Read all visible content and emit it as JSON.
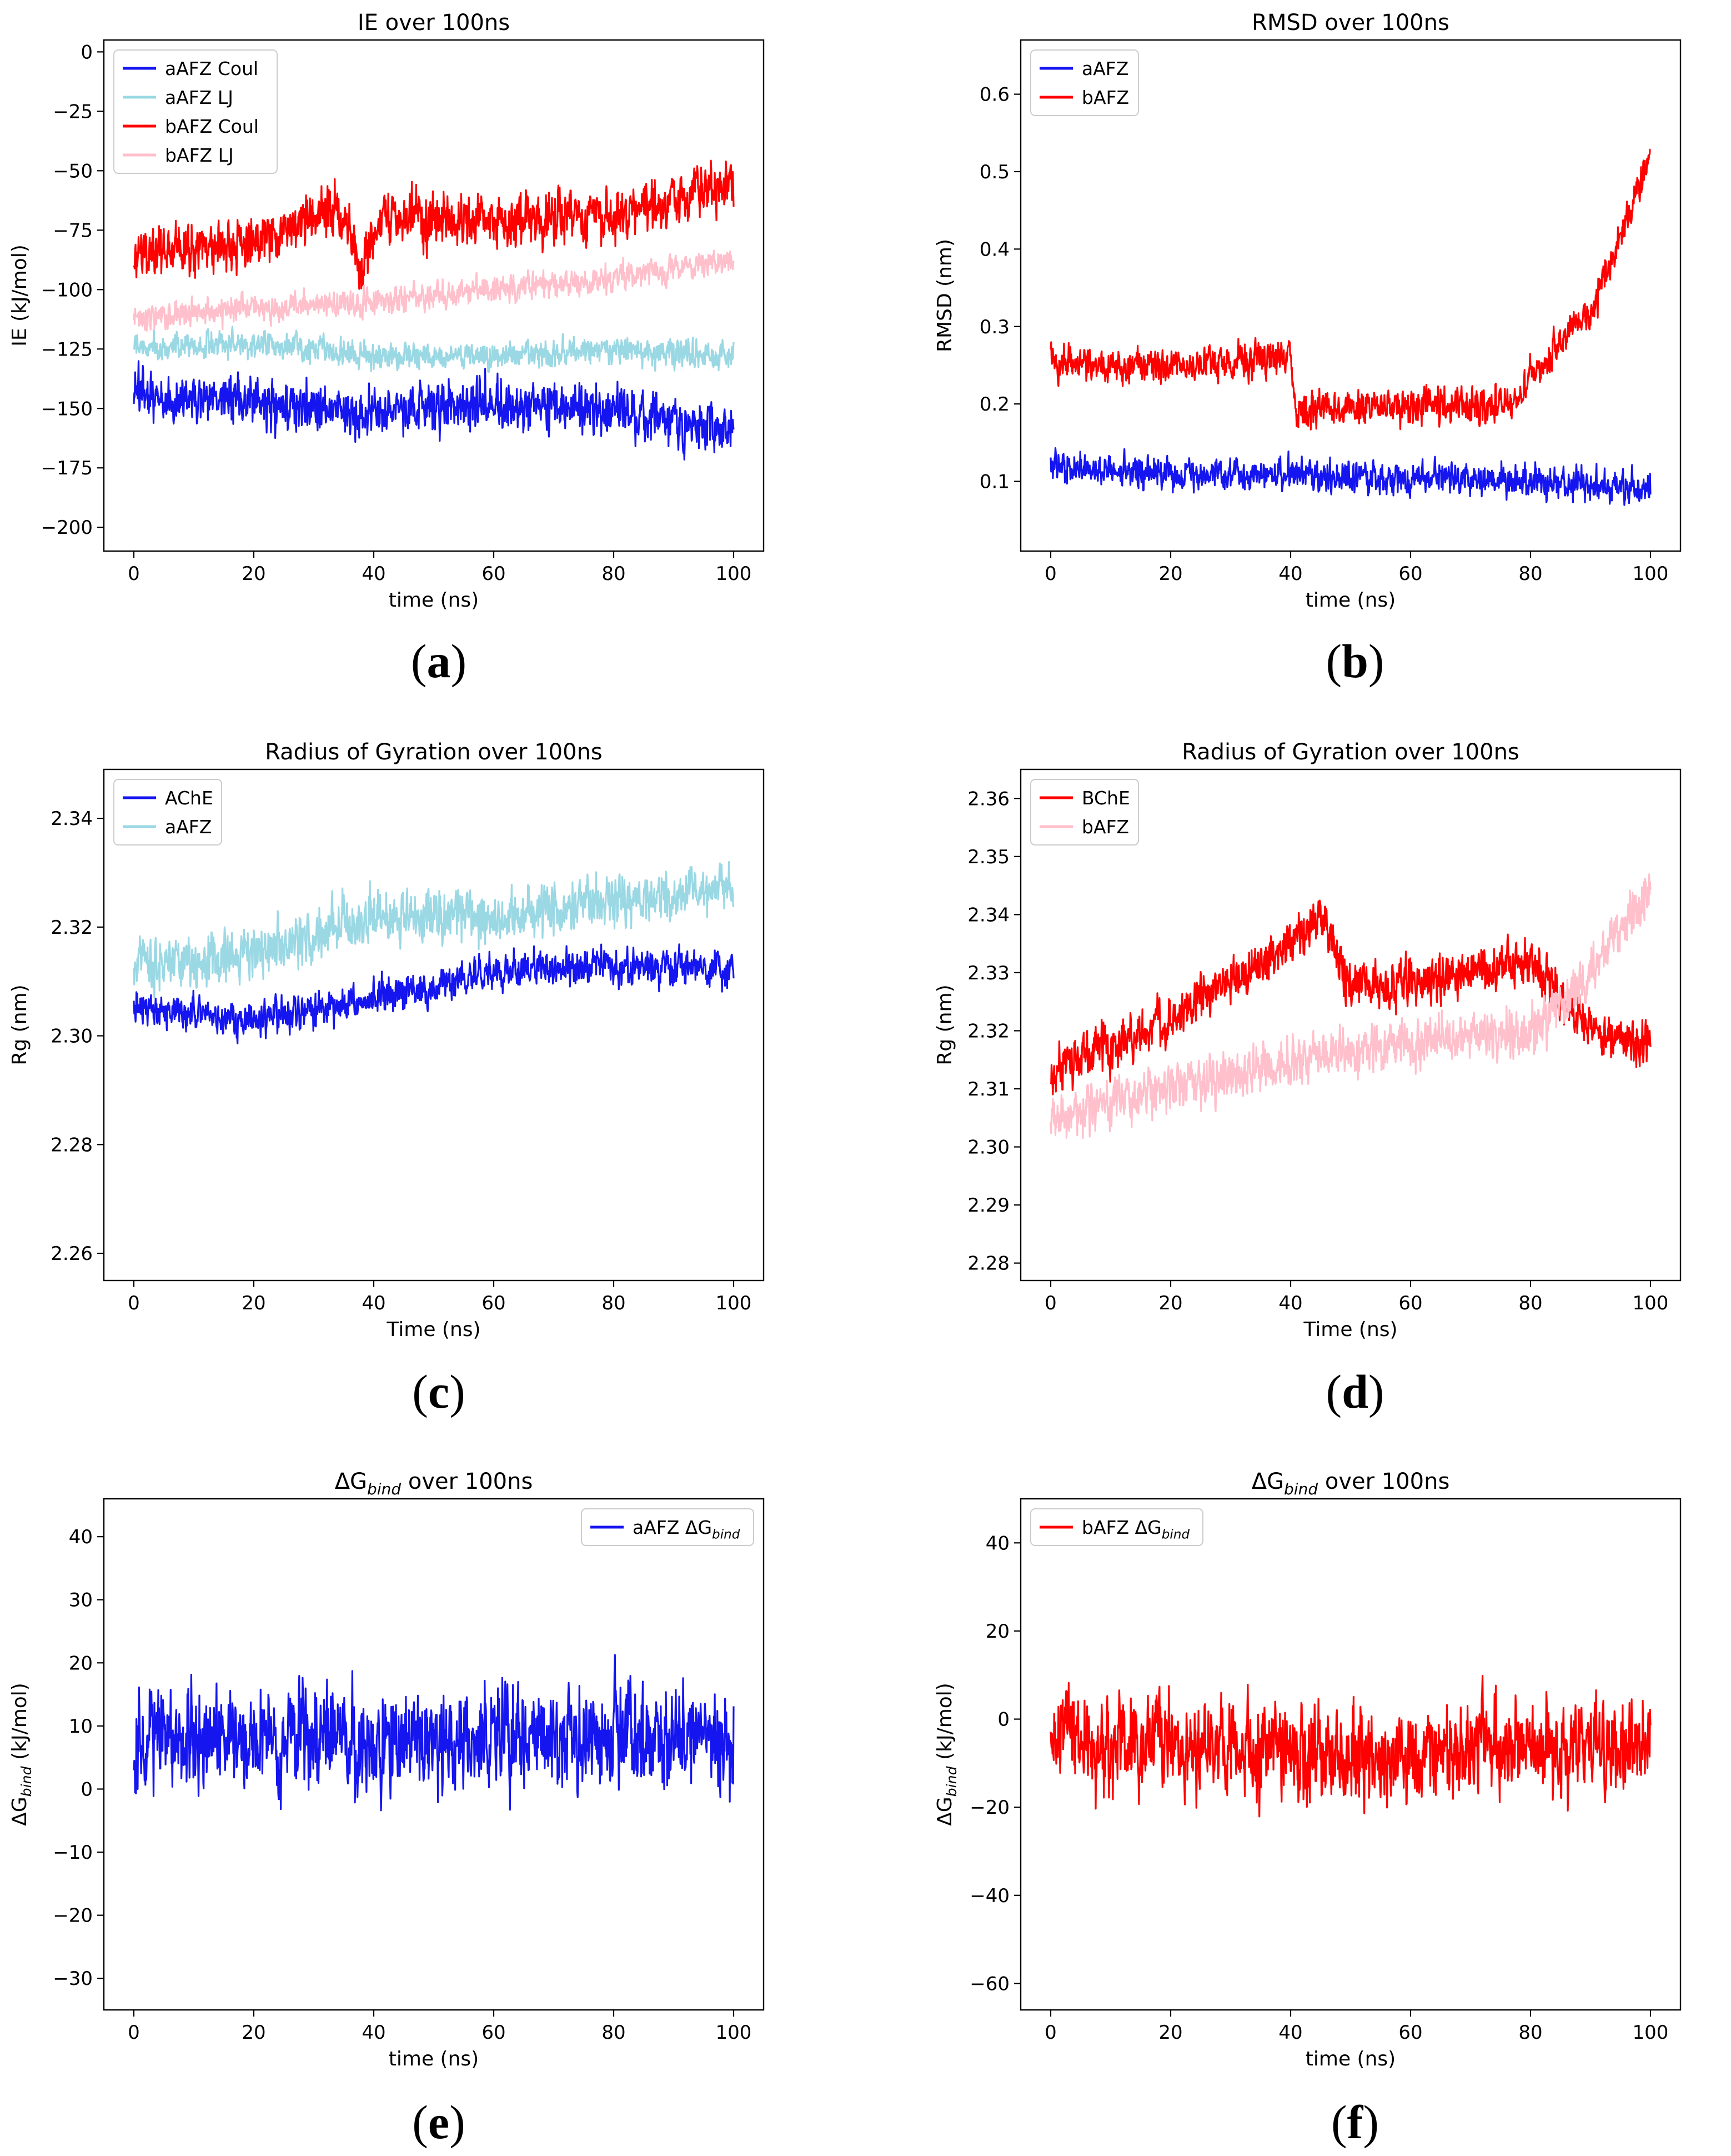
{
  "chart_data": [
    {
      "type": "line",
      "panel": "a",
      "title": "IE over 100ns",
      "xlabel": "time (ns)",
      "ylabel": "IE (kJ/mol)",
      "xlim": [
        -5,
        105
      ],
      "ylim": [
        -210,
        5
      ],
      "xticks": [
        0,
        20,
        40,
        60,
        80,
        100
      ],
      "yticks": [
        0,
        -25,
        -50,
        -75,
        -100,
        -125,
        -150,
        -175,
        -200
      ],
      "legend_position": "top-left",
      "legend_order": [
        0,
        1,
        2,
        3
      ],
      "series": [
        {
          "name": "aAFZ Coul",
          "color": "#1515f0",
          "mean": [
            [
              0,
              -145
            ],
            [
              20,
              -148
            ],
            [
              40,
              -152
            ],
            [
              60,
              -148
            ],
            [
              80,
              -150
            ],
            [
              100,
              -160
            ]
          ],
          "noise": 13,
          "seed": 11
        },
        {
          "name": "aAFZ LJ",
          "color": "#9ad8e4",
          "mean": [
            [
              0,
              -125
            ],
            [
              20,
              -122
            ],
            [
              40,
              -128
            ],
            [
              60,
              -128
            ],
            [
              80,
              -125
            ],
            [
              100,
              -128
            ]
          ],
          "noise": 7,
          "seed": 12
        },
        {
          "name": "bAFZ Coul",
          "color": "#fe0000",
          "mean": [
            [
              0,
              -85
            ],
            [
              20,
              -80
            ],
            [
              34,
              -65
            ],
            [
              38,
              -90
            ],
            [
              42,
              -70
            ],
            [
              60,
              -72
            ],
            [
              80,
              -68
            ],
            [
              100,
              -55
            ]
          ],
          "noise": 14,
          "seed": 13
        },
        {
          "name": "bAFZ LJ",
          "color": "#ffbfcb",
          "mean": [
            [
              0,
              -112
            ],
            [
              20,
              -108
            ],
            [
              40,
              -105
            ],
            [
              60,
              -100
            ],
            [
              80,
              -95
            ],
            [
              100,
              -88
            ]
          ],
          "noise": 7,
          "seed": 14
        }
      ],
      "draw_order": [
        1,
        0,
        2,
        3
      ]
    },
    {
      "type": "line",
      "panel": "b",
      "title": "RMSD over 100ns",
      "xlabel": "time (ns)",
      "ylabel": "RMSD (nm)",
      "xlim": [
        -5,
        105
      ],
      "ylim": [
        0.01,
        0.67
      ],
      "xticks": [
        0,
        20,
        40,
        60,
        80,
        100
      ],
      "yticks": [
        0.1,
        0.2,
        0.3,
        0.4,
        0.5,
        0.6
      ],
      "legend_position": "top-left",
      "legend_order": [
        0,
        1
      ],
      "series": [
        {
          "name": "aAFZ",
          "color": "#1515f0",
          "mean": [
            [
              0,
              0.12
            ],
            [
              20,
              0.11
            ],
            [
              40,
              0.11
            ],
            [
              60,
              0.105
            ],
            [
              80,
              0.1
            ],
            [
              100,
              0.09
            ]
          ],
          "noise": 0.025,
          "seed": 21
        },
        {
          "name": "bAFZ",
          "color": "#fe0000",
          "mean": [
            [
              0,
              0.25
            ],
            [
              20,
              0.25
            ],
            [
              40,
              0.26
            ],
            [
              41,
              0.19
            ],
            [
              60,
              0.2
            ],
            [
              78,
              0.2
            ],
            [
              80,
              0.24
            ],
            [
              90,
              0.32
            ],
            [
              95,
              0.42
            ],
            [
              100,
              0.52
            ]
          ],
          "noise": 0.028,
          "seed": 22
        }
      ],
      "draw_order": [
        1,
        0
      ]
    },
    {
      "type": "line",
      "panel": "c",
      "title": "Radius of Gyration over 100ns",
      "xlabel": "Time (ns)",
      "ylabel": "Rg (nm)",
      "xlim": [
        -5,
        105
      ],
      "ylim": [
        2.255,
        2.349
      ],
      "xticks": [
        0,
        20,
        40,
        60,
        80,
        100
      ],
      "yticks": [
        2.26,
        2.28,
        2.3,
        2.32,
        2.34
      ],
      "legend_position": "top-left",
      "legend_order": [
        0,
        1
      ],
      "series": [
        {
          "name": "AChE",
          "color": "#1515f0",
          "mean": [
            [
              0,
              2.305
            ],
            [
              20,
              2.303
            ],
            [
              40,
              2.307
            ],
            [
              60,
              2.312
            ],
            [
              80,
              2.313
            ],
            [
              100,
              2.312
            ]
          ],
          "noise": 0.004,
          "seed": 31
        },
        {
          "name": "aAFZ",
          "color": "#9ad8e4",
          "mean": [
            [
              0,
              2.313
            ],
            [
              20,
              2.315
            ],
            [
              40,
              2.322
            ],
            [
              60,
              2.322
            ],
            [
              80,
              2.325
            ],
            [
              100,
              2.327
            ]
          ],
          "noise": 0.006,
          "seed": 32
        }
      ],
      "draw_order": [
        1,
        0
      ]
    },
    {
      "type": "line",
      "panel": "d",
      "title": "Radius of Gyration over 100ns",
      "xlabel": "Time (ns)",
      "ylabel": "Rg (nm)",
      "xlim": [
        -5,
        105
      ],
      "ylim": [
        2.277,
        2.365
      ],
      "xticks": [
        0,
        20,
        40,
        60,
        80,
        100
      ],
      "yticks": [
        2.28,
        2.29,
        2.3,
        2.31,
        2.32,
        2.33,
        2.34,
        2.35,
        2.36
      ],
      "legend_position": "top-left",
      "legend_order": [
        0,
        1
      ],
      "series": [
        {
          "name": "BChE",
          "color": "#fe0000",
          "mean": [
            [
              0,
              2.313
            ],
            [
              20,
              2.322
            ],
            [
              40,
              2.335
            ],
            [
              45,
              2.34
            ],
            [
              50,
              2.328
            ],
            [
              60,
              2.328
            ],
            [
              80,
              2.332
            ],
            [
              90,
              2.32
            ],
            [
              100,
              2.318
            ]
          ],
          "noise": 0.005,
          "seed": 41
        },
        {
          "name": "bAFZ",
          "color": "#ffbfcb",
          "mean": [
            [
              0,
              2.305
            ],
            [
              20,
              2.31
            ],
            [
              40,
              2.315
            ],
            [
              60,
              2.318
            ],
            [
              80,
              2.32
            ],
            [
              90,
              2.33
            ],
            [
              100,
              2.345
            ]
          ],
          "noise": 0.005,
          "seed": 42
        }
      ],
      "draw_order": [
        0,
        1
      ]
    },
    {
      "type": "line",
      "panel": "e",
      "title": "ΔG",
      "title_sub": "bind",
      "title_rest": " over 100ns",
      "xlabel": "time (ns)",
      "ylabel": "ΔG",
      "ylabel_sub": "bind",
      "ylabel_rest": " (kJ/mol)",
      "xlim": [
        -5,
        105
      ],
      "ylim": [
        -35,
        46
      ],
      "xticks": [
        0,
        20,
        40,
        60,
        80,
        100
      ],
      "yticks": [
        -30,
        -20,
        -10,
        0,
        10,
        20,
        30,
        40
      ],
      "legend_position": "top-right",
      "legend_order": [
        0
      ],
      "series": [
        {
          "name": "aAFZ ΔG",
          "name_sub": "bind",
          "color": "#1515f0",
          "mean": [
            [
              0,
              8
            ],
            [
              50,
              8
            ],
            [
              100,
              9
            ]
          ],
          "noise": 10,
          "seed": 51
        }
      ],
      "draw_order": [
        0
      ]
    },
    {
      "type": "line",
      "panel": "f",
      "title": "ΔG",
      "title_sub": "bind",
      "title_rest": " over 100ns",
      "xlabel": "time (ns)",
      "ylabel": "ΔG",
      "ylabel_sub": "bind",
      "ylabel_rest": " (kJ/mol)",
      "xlim": [
        -5,
        105
      ],
      "ylim": [
        -66,
        50
      ],
      "xticks": [
        0,
        20,
        40,
        60,
        80,
        100
      ],
      "yticks": [
        -60,
        -40,
        -20,
        0,
        20,
        40
      ],
      "legend_position": "top-left",
      "legend_order": [
        0
      ],
      "series": [
        {
          "name": "bAFZ ΔG",
          "name_sub": "bind",
          "color": "#fe0000",
          "mean": [
            [
              0,
              -5
            ],
            [
              50,
              -8
            ],
            [
              100,
              -6
            ]
          ],
          "noise": 13,
          "seed": 61
        }
      ],
      "draw_order": [
        0
      ]
    }
  ],
  "captions": [
    "(a)",
    "(b)",
    "(c)",
    "(d)",
    "(e)",
    "(f)"
  ]
}
